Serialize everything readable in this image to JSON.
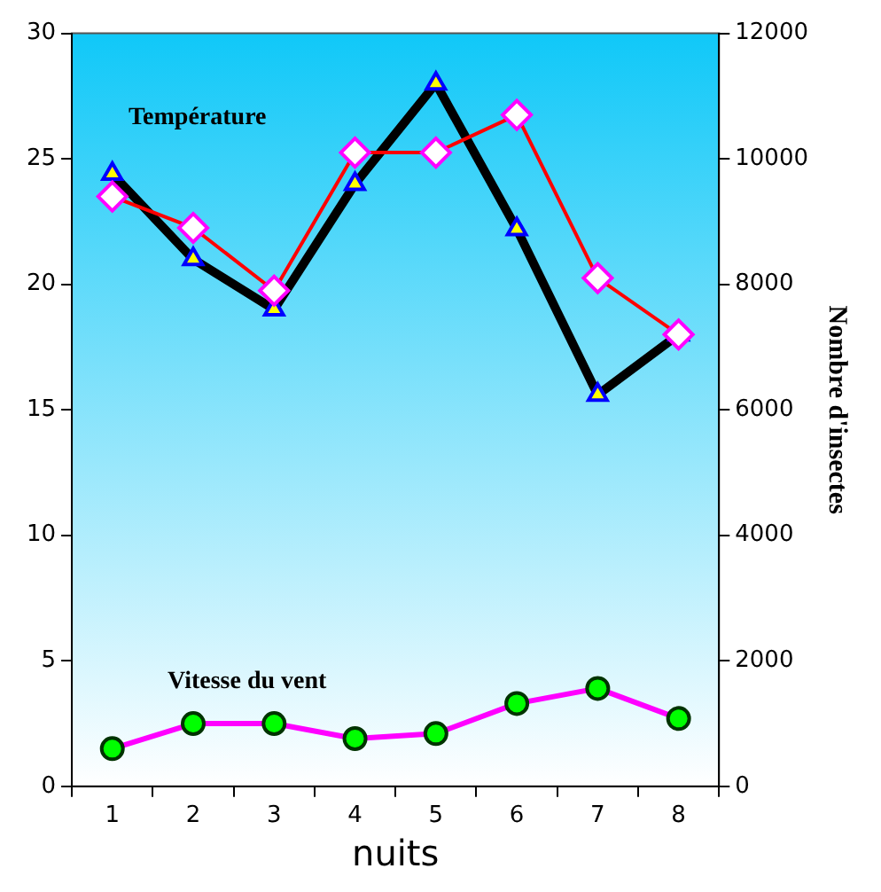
{
  "chart_data": {
    "type": "line",
    "categories": [
      "1",
      "2",
      "3",
      "4",
      "5",
      "6",
      "7",
      "8"
    ],
    "xlabel": "nuits",
    "y2label": "Nombre d'insectes",
    "ylim": [
      0,
      30
    ],
    "yticks": [
      0,
      5,
      10,
      15,
      20,
      25,
      30
    ],
    "y2lim": [
      0,
      12000
    ],
    "y2ticks": [
      0,
      2000,
      4000,
      6000,
      8000,
      10000,
      12000
    ],
    "grid": false,
    "legend": false,
    "series": [
      {
        "name": "Température",
        "color": "#000000",
        "marker": "triangle",
        "values": [
          24.4,
          21.0,
          19.0,
          24.0,
          28.0,
          22.2,
          15.6,
          18.0
        ]
      },
      {
        "color": "#ff0000",
        "marker": "diamond",
        "axis": "y2",
        "values": [
          9400,
          8900,
          7900,
          10100,
          10100,
          10700,
          8100,
          7200
        ]
      },
      {
        "name": "Vitesse du vent",
        "color": "#ff00ff",
        "marker": "circle",
        "values": [
          1.5,
          2.5,
          2.5,
          1.9,
          2.1,
          3.3,
          3.9,
          2.7
        ]
      }
    ]
  }
}
